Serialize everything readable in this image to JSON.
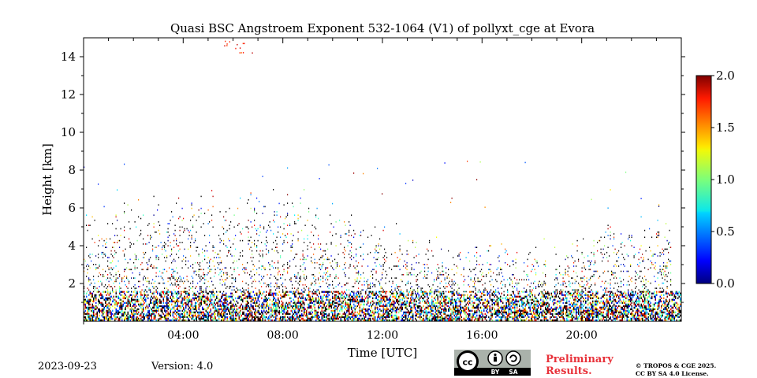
{
  "chart_data": {
    "type": "heatmap",
    "title": "Quasi BSC Angstroem Exponent 532-1064 (V1) of pollyxt_cge at Evora",
    "xlabel": "Time [UTC]",
    "ylabel": "Height [km]",
    "xlim": [
      0,
      24
    ],
    "ylim": [
      0,
      15
    ],
    "x_ticks": [
      4,
      8,
      12,
      16,
      20
    ],
    "x_tick_labels": [
      "04:00",
      "08:00",
      "12:00",
      "16:00",
      "20:00"
    ],
    "y_ticks": [
      2,
      4,
      6,
      8,
      10,
      12,
      14
    ],
    "y_tick_labels": [
      "2",
      "4",
      "6",
      "8",
      "10",
      "12",
      "14"
    ],
    "colorbar": {
      "min": 0.0,
      "max": 2.0,
      "ticks": [
        "0.0",
        "0.5",
        "1.0",
        "1.5",
        "2.0"
      ],
      "colormap": "jet"
    },
    "grid": false,
    "legend": "colorbar-right"
  },
  "footer": {
    "date": "2023-09-23",
    "version": "Version: 4.0",
    "preliminary_line1": "Preliminary",
    "preliminary_line2": "Results.",
    "copyright_line1": "© TROPOS & CGE 2025.",
    "copyright_line2": "CC BY SA 4.0 License.",
    "license_badge": {
      "icon": "cc-by-sa-icon",
      "by_label": "BY",
      "sa_label": "SA"
    }
  }
}
